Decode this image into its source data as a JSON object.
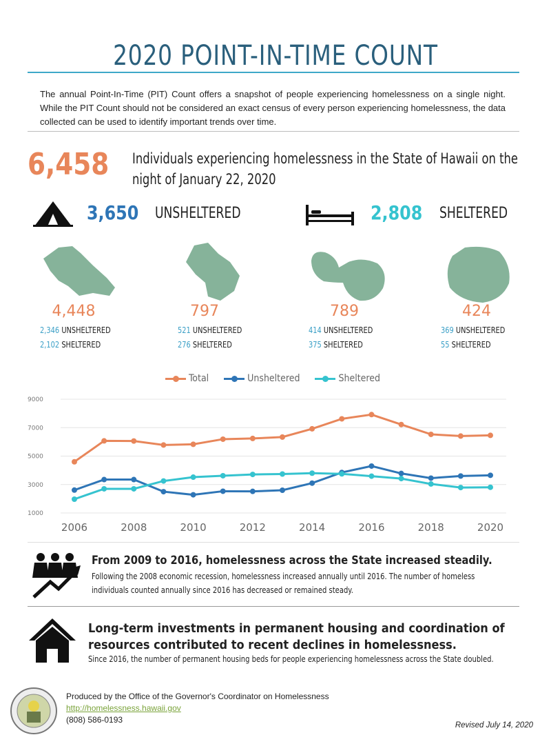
{
  "title": "2020 POINT-IN-TIME COUNT",
  "intro": "The annual Point-In-Time (PIT) Count offers a snapshot of people experiencing homelessness on a single night. While the PIT Count should not be considered an exact census of every person experiencing homelessness, the data collected can be used to identify important trends over time.",
  "total": {
    "number": "6,458",
    "line1": "Individuals experiencing homelessness in the State of Hawaii on the",
    "line2": "night of January 22, 2020"
  },
  "unsheltered": {
    "number": "3,650",
    "label": "UNSHELTERED",
    "icon": "tent-icon"
  },
  "sheltered": {
    "number": "2,808",
    "label": "SHELTERED",
    "icon": "bed-icon"
  },
  "islands": [
    {
      "name": "oahu",
      "total": "4,448",
      "unsheltered": "2,346",
      "sheltered": "2,102"
    },
    {
      "name": "hawaii",
      "total": "797",
      "unsheltered": "521",
      "sheltered": "276"
    },
    {
      "name": "maui",
      "total": "789",
      "unsheltered": "414",
      "sheltered": "375"
    },
    {
      "name": "kauai",
      "total": "424",
      "unsheltered": "369",
      "sheltered": "55"
    }
  ],
  "island_labels": {
    "unsheltered": "UNSHELTERED",
    "sheltered": "SHELTERED"
  },
  "colors": {
    "total": "#e8865a",
    "unsheltered": "#2e75b6",
    "sheltered": "#35c3cf",
    "island": "#86b39a",
    "title": "#2a5f7c"
  },
  "chart_data": {
    "type": "line",
    "x": [
      2006,
      2007,
      2008,
      2009,
      2010,
      2011,
      2012,
      2013,
      2014,
      2015,
      2016,
      2017,
      2018,
      2019,
      2020
    ],
    "x_ticks": [
      "2006",
      "2008",
      "2010",
      "2012",
      "2014",
      "2016",
      "2018",
      "2020"
    ],
    "y_ticks": [
      "1000",
      "3000",
      "5000",
      "7000",
      "9000"
    ],
    "ylim": [
      1000,
      9000
    ],
    "legend": "top",
    "grid": true,
    "series": [
      {
        "name": "Total",
        "values": [
          4600,
          6070,
          6060,
          5780,
          5830,
          6190,
          6240,
          6340,
          6920,
          7620,
          7920,
          7220,
          6530,
          6410,
          6458
        ]
      },
      {
        "name": "Unsheltered",
        "values": [
          2610,
          3350,
          3350,
          2500,
          2280,
          2530,
          2520,
          2600,
          3100,
          3850,
          4300,
          3780,
          3450,
          3600,
          3650
        ]
      },
      {
        "name": "Sheltered",
        "values": [
          1970,
          2700,
          2700,
          3250,
          3520,
          3620,
          3710,
          3740,
          3800,
          3750,
          3590,
          3420,
          3040,
          2790,
          2808
        ]
      }
    ]
  },
  "trend": {
    "heading": "From 2009 to 2016, homelessness across the State increased steadily.",
    "line1": "Following the 2008 economic recession, homelessness increased annually until 2016. The number of homeless",
    "line2": "individuals counted annually since 2016 has decreased or remained steady."
  },
  "housing": {
    "heading1": "Long-term investments in permanent housing and coordination of",
    "heading2": "resources contributed to recent declines in homelessness.",
    "line1": "Since 2016, the number of permanent housing beds for people experiencing homelessness across the State doubled."
  },
  "footer": {
    "produced": "Produced by the Office of the Governor's Coordinator on Homelessness",
    "url": "http://homelessness.hawaii.gov",
    "phone": "(808) 586-0193",
    "revised": "Revised July 14, 2020",
    "seal_text": "STATE OF HAWAII 1959"
  }
}
